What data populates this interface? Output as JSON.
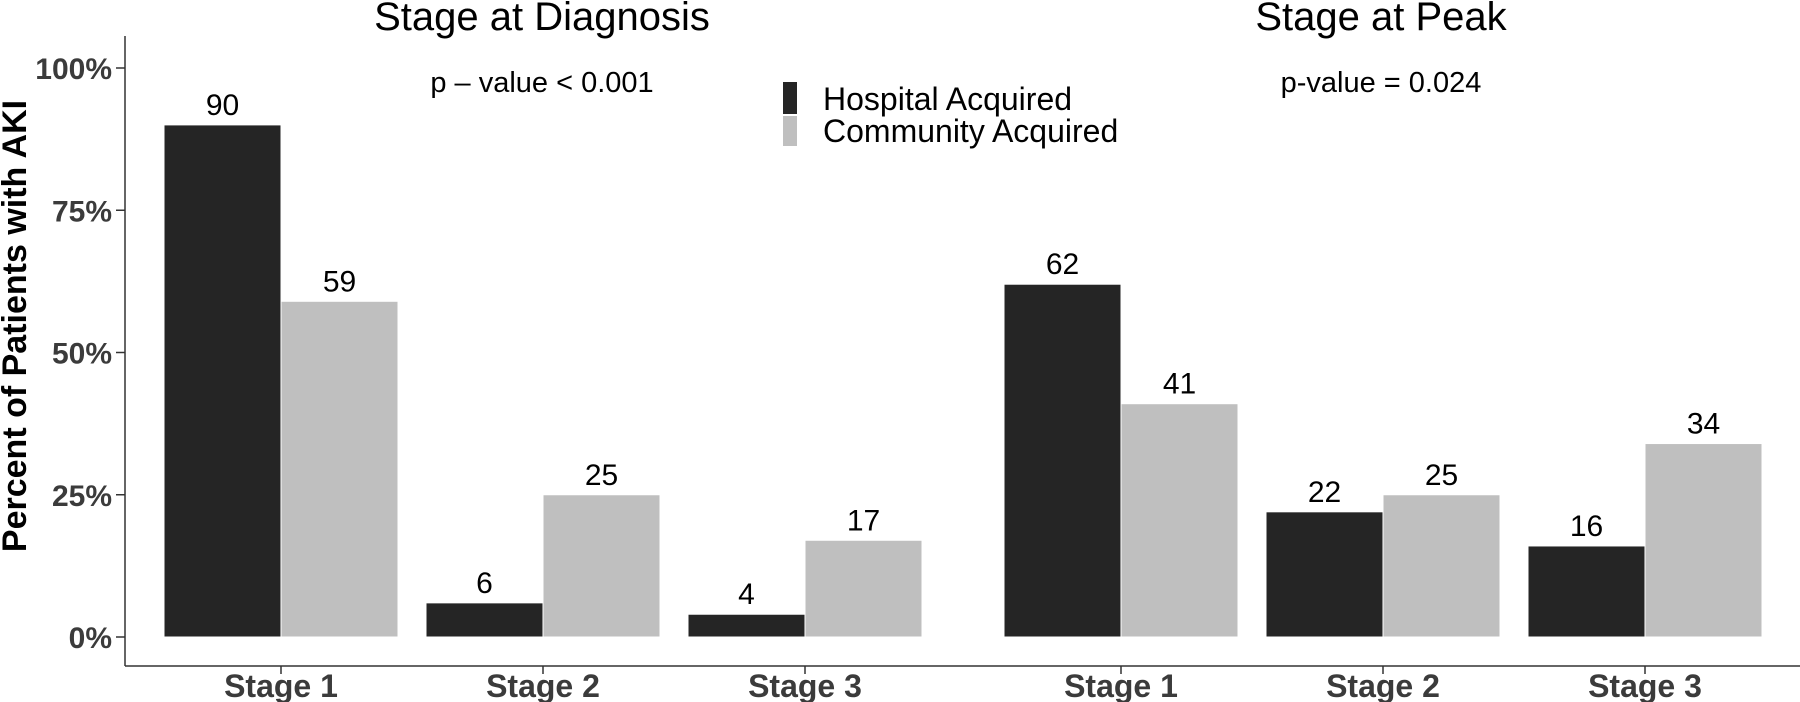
{
  "chart_data": {
    "type": "bar",
    "ylabel": "Percent of Patients with AKI",
    "ylim": [
      0,
      105
    ],
    "yticks": [
      0,
      25,
      50,
      75,
      100
    ],
    "ytick_labels": [
      "0%",
      "25%",
      "50%",
      "75%",
      "100%"
    ],
    "grid": false,
    "legend": {
      "placement": "top-center",
      "entries": [
        {
          "name": "Hospital Acquired",
          "color": "#252525"
        },
        {
          "name": "Community Acquired",
          "color": "#bfbfbf"
        }
      ]
    },
    "panels": [
      {
        "title": "Stage at Diagnosis",
        "annotation": "p – value < 0.001",
        "categories": [
          "Stage 1",
          "Stage 2",
          "Stage 3"
        ],
        "series": [
          {
            "name": "Hospital Acquired",
            "values": [
              90,
              6,
              4
            ]
          },
          {
            "name": "Community Acquired",
            "values": [
              59,
              25,
              17
            ]
          }
        ]
      },
      {
        "title": "Stage at Peak",
        "annotation": "p-value = 0.024",
        "categories": [
          "Stage 1",
          "Stage 2",
          "Stage 3"
        ],
        "series": [
          {
            "name": "Hospital Acquired",
            "values": [
              62,
              22,
              16
            ]
          },
          {
            "name": "Community Acquired",
            "values": [
              41,
              25,
              34
            ]
          }
        ]
      }
    ]
  }
}
